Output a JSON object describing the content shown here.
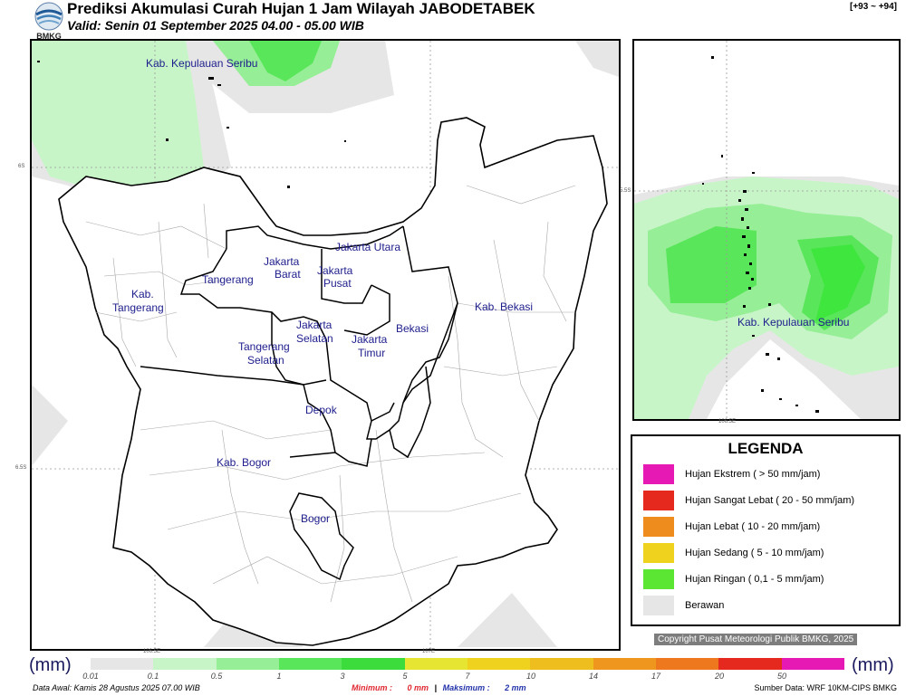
{
  "header": {
    "title": "Prediksi Akumulasi Curah Hujan 1 Jam Wilayah JABODETABEK",
    "subtitle": "Valid: Senin 01 September 2025 04.00 - 05.00 WIB",
    "logo_text": "BMKG",
    "code": "[+93 ~ +94]"
  },
  "map": {
    "regions": [
      "Kab. Kepulauan Seribu",
      "Jakarta Utara",
      "Jakarta Barat",
      "Jakarta Pusat",
      "Tangerang",
      "Kab. Tangerang",
      "Kab. Bekasi",
      "Bekasi",
      "Jakarta Selatan",
      "Jakarta Timur",
      "Tangerang Selatan",
      "Depok",
      "Kab. Bogor",
      "Bogor"
    ],
    "lat_labels": [
      "6S",
      "6.5S"
    ],
    "lon_labels": [
      "106.5E",
      "107E"
    ],
    "inset_lat_label": "5.5S",
    "inset_lon_label": "106.5E",
    "inset_region": "Kab. Kepulauan Seribu",
    "colors": {
      "berawan": "#e6e6e6",
      "light_green": "#c8f5c8",
      "mid_green": "#96ee96",
      "green": "#5ae65a",
      "bright_green": "#3ee63e"
    }
  },
  "legend": {
    "title": "LEGENDA",
    "items": [
      {
        "label": "Hujan Ekstrem ( > 50 mm/jam)",
        "color": "#e619b4"
      },
      {
        "label": "Hujan Sangat Lebat ( 20 - 50 mm/jam)",
        "color": "#e6291e"
      },
      {
        "label": "Hujan Lebat ( 10 - 20 mm/jam)",
        "color": "#ee8c1e"
      },
      {
        "label": "Hujan Sedang ( 5 - 10 mm/jam)",
        "color": "#eed21e"
      },
      {
        "label": "Hujan Ringan ( 0,1 - 5 mm/jam)",
        "color": "#5ae632"
      },
      {
        "label": "Berawan",
        "color": "#e6e6e6"
      }
    ]
  },
  "copyright": "Copyright Pusat Meteorologi Publik BMKG, 2025",
  "colorbar": {
    "unit_left": "(mm)",
    "unit_right": "(mm)",
    "ticks": [
      "0.01",
      "0.1",
      "0.5",
      "1",
      "3",
      "5",
      "7",
      "10",
      "14",
      "17",
      "20",
      "50"
    ],
    "colors": [
      "#e6e6e6",
      "#c8f5c8",
      "#96ee96",
      "#5ae65a",
      "#3cdc3c",
      "#e6e632",
      "#eed21e",
      "#eebe1e",
      "#ee961e",
      "#ee781e",
      "#e6291e",
      "#e619b4"
    ]
  },
  "footer": {
    "data_awal": "Data Awal: Kamis 28 Agustus 2025 07.00 WIB",
    "minimum_label": "Minimum :",
    "minimum_value": "0 mm",
    "separator": "|",
    "maksimum_label": "Maksimum :",
    "maksimum_value": "2 mm",
    "source": "Sumber Data: WRF 10KM-CIPS BMKG"
  }
}
